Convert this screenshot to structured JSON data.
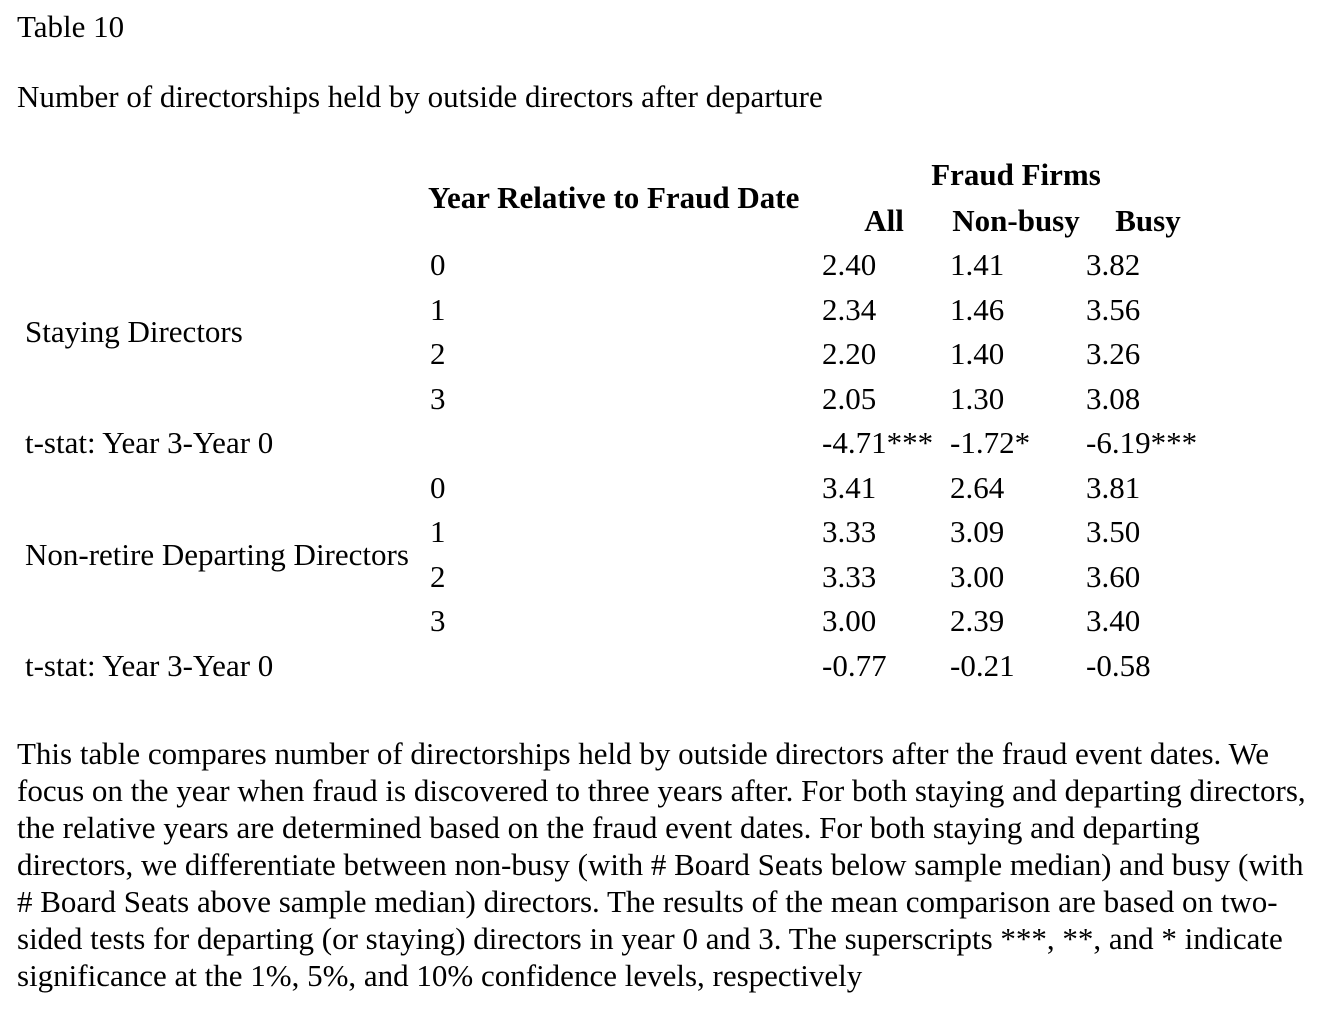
{
  "header": {
    "table_label": "Table 10",
    "caption": "Number of directorships held by outside directors after departure"
  },
  "table": {
    "year_header": "Year Relative to Fraud Date",
    "col_group_header": "Fraud Firms",
    "columns": [
      "All",
      "Non-busy",
      "Busy"
    ],
    "sections": [
      {
        "label": "Staying Directors",
        "rows": [
          {
            "year": "0",
            "all": "2.40",
            "non_busy": "1.41",
            "busy": "3.82"
          },
          {
            "year": "1",
            "all": "2.34",
            "non_busy": "1.46",
            "busy": "3.56"
          },
          {
            "year": "2",
            "all": "2.20",
            "non_busy": "1.40",
            "busy": "3.26"
          },
          {
            "year": "3",
            "all": "2.05",
            "non_busy": "1.30",
            "busy": "3.08"
          }
        ],
        "tstat": {
          "label": "t-stat: Year 3-Year 0",
          "all": "-4.71***",
          "non_busy": "-1.72*",
          "busy": "-6.19***"
        }
      },
      {
        "label": "Non-retire Departing Directors",
        "rows": [
          {
            "year": "0",
            "all": "3.41",
            "non_busy": "2.64",
            "busy": "3.81"
          },
          {
            "year": "1",
            "all": "3.33",
            "non_busy": "3.09",
            "busy": "3.50"
          },
          {
            "year": "2",
            "all": "3.33",
            "non_busy": "3.00",
            "busy": "3.60"
          },
          {
            "year": "3",
            "all": "3.00",
            "non_busy": "2.39",
            "busy": "3.40"
          }
        ],
        "tstat": {
          "label": "t-stat: Year 3-Year 0",
          "all": "-0.77",
          "non_busy": "-0.21",
          "busy": "-0.58"
        }
      }
    ]
  },
  "footnote": {
    "text": "This table compares number of directorships held by outside directors after the fraud event dates. We focus on the year when fraud is discovered to three years after. For both staying and departing directors, the relative years are determined based on the fraud event dates. For both staying and departing directors, we differentiate between non-busy (with # Board Seats below sample median) and busy (with # Board Seats above sample median) directors. The results of the mean comparison are based on two-sided tests for departing (or staying) directors in year 0 and 3. The superscripts ***, **, and * indicate significance at the 1%, 5%, and 10% confidence levels, respectively"
  }
}
